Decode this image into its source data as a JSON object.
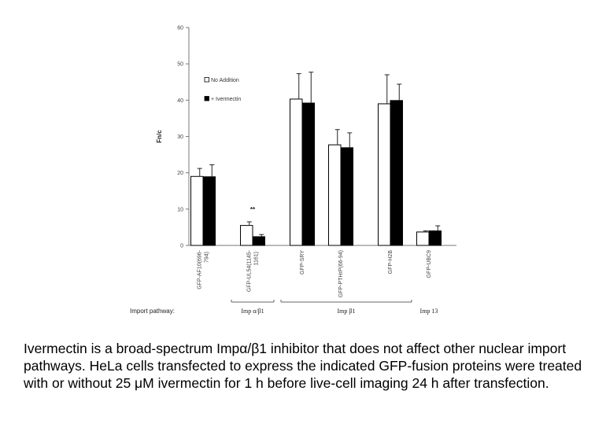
{
  "chart_data": {
    "type": "bar",
    "title": "",
    "xlabel": "",
    "ylabel": "Fn/c",
    "ylim": [
      0,
      60
    ],
    "yticks": [
      0,
      10,
      20,
      30,
      40,
      50,
      60
    ],
    "grid": false,
    "legend_position": "top-left",
    "categories": [
      "GFP-AF10(696-\n794)",
      "GFP-UL54(1145-\n1161)",
      "GFP-SRY",
      "GFP-PTHrP(66-94)",
      "GFP-H2B",
      "GFP-UBC9"
    ],
    "series": [
      {
        "name": "No Addition",
        "fill": "#ffffff",
        "values": [
          19.0,
          5.5,
          40.3,
          27.7,
          39.0,
          3.7
        ],
        "errors": [
          2.2,
          1.0,
          7.0,
          4.2,
          8.0,
          0.3
        ]
      },
      {
        "name": "+ Ivermectin",
        "fill": "#000000",
        "values": [
          18.9,
          2.4,
          39.2,
          26.9,
          39.9,
          4.0
        ],
        "errors": [
          3.3,
          0.6,
          8.5,
          4.1,
          4.5,
          1.4
        ]
      }
    ],
    "annotations": [
      {
        "text": "**",
        "category_index": 1,
        "y": 9.8
      }
    ],
    "import_pathway": {
      "label": "Import pathway:",
      "groups": [
        {
          "name": "Imp α/β1",
          "categories": [
            1
          ]
        },
        {
          "name": "Imp β1",
          "categories": [
            2,
            3,
            4
          ]
        },
        {
          "name": "Imp 13",
          "categories": [
            5
          ],
          "bracket": false
        }
      ]
    }
  },
  "caption": "Ivermectin is a broad-spectrum Impα/β1 inhibitor that does not affect other nuclear import pathways. HeLa cells transfected to express the indicated GFP-fusion proteins were treated with or without 25 μM ivermectin for 1 h before live-cell imaging 24 h after transfection."
}
